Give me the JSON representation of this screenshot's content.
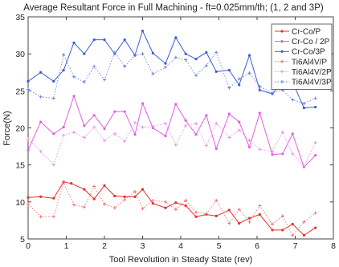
{
  "chart_data": {
    "type": "line",
    "title": "Average Resultant Force in Full Machining - ft=0.025mm/th; (1, 2 and 3P)",
    "xlabel": "Tool Revolution in Steady State (rev)",
    "ylabel": "Force(N)",
    "xlim": [
      0,
      8
    ],
    "ylim": [
      5,
      35
    ],
    "xticks": [
      "0",
      "1",
      "2",
      "3",
      "4",
      "5",
      "6",
      "7",
      "8"
    ],
    "yticks": [
      "5",
      "10",
      "15",
      "20",
      "25",
      "30",
      "35"
    ],
    "grid": false,
    "legend_position": "top-right",
    "series": [
      {
        "name": "Cr-Co/P",
        "color": "#e8302a",
        "style": "solid",
        "marker": "point",
        "x": [
          0,
          0.33,
          0.67,
          0.93,
          1.13,
          1.47,
          1.73,
          2.0,
          2.27,
          2.53,
          2.8,
          3.0,
          3.27,
          3.6,
          3.87,
          4.13,
          4.4,
          4.67,
          4.93,
          5.27,
          5.53,
          5.8,
          6.07,
          6.4,
          6.67,
          6.93,
          7.23,
          7.53
        ],
        "values": [
          10.6,
          10.7,
          10.5,
          12.7,
          12.5,
          11.7,
          10.4,
          12.2,
          10.8,
          10.7,
          10.7,
          11.7,
          9.8,
          9.2,
          9.9,
          9.5,
          8.0,
          8.3,
          8.1,
          8.9,
          7.1,
          7.8,
          8.3,
          6.2,
          6.2,
          7.0,
          5.5,
          6.5
        ]
      },
      {
        "name": "Cr-Co / 2P",
        "color": "#e060e0",
        "style": "solid",
        "marker": "point",
        "x": [
          0,
          0.33,
          0.67,
          0.93,
          1.2,
          1.47,
          1.73,
          2.0,
          2.27,
          2.53,
          2.8,
          3.0,
          3.27,
          3.6,
          3.87,
          4.13,
          4.4,
          4.67,
          4.93,
          5.27,
          5.53,
          5.8,
          6.07,
          6.4,
          6.67,
          6.93,
          7.23,
          7.53
        ],
        "values": [
          17.0,
          20.8,
          19.2,
          20.1,
          24.3,
          20.3,
          21.7,
          19.9,
          22.2,
          22.2,
          19.1,
          23.3,
          20.0,
          18.9,
          23.2,
          21.0,
          19.1,
          21.7,
          17.2,
          21.9,
          20.8,
          17.4,
          22.0,
          16.4,
          16.5,
          19.2,
          14.7,
          16.3
        ]
      },
      {
        "name": "Cr-Co/3P",
        "color": "#3a5cd8",
        "style": "solid",
        "marker": "point",
        "x": [
          0,
          0.33,
          0.67,
          0.93,
          1.2,
          1.47,
          1.73,
          2.0,
          2.27,
          2.53,
          2.8,
          3.0,
          3.27,
          3.6,
          3.87,
          4.13,
          4.4,
          4.67,
          4.93,
          5.27,
          5.53,
          5.8,
          6.07,
          6.4,
          6.67,
          6.93,
          7.23,
          7.53
        ],
        "values": [
          26.3,
          27.5,
          26.3,
          27.8,
          31.5,
          30.0,
          31.9,
          31.9,
          30.0,
          31.9,
          29.8,
          33.1,
          30.1,
          28.7,
          32.2,
          30.0,
          29.3,
          30.2,
          27.6,
          27.8,
          25.8,
          29.8,
          25.1,
          24.6,
          26.3,
          26.2,
          22.7,
          22.8
        ]
      },
      {
        "name": "Ti6Al4V/P",
        "color": "#f07070",
        "style": "dotted",
        "marker": "plus",
        "x": [
          0,
          0.33,
          0.67,
          0.93,
          1.2,
          1.47,
          1.73,
          2.0,
          2.27,
          2.53,
          2.8,
          3.0,
          3.27,
          3.6,
          3.87,
          4.13,
          4.4,
          4.67,
          4.93,
          5.27,
          5.53,
          5.8,
          6.07,
          6.4,
          6.67,
          6.93,
          7.23,
          7.53
        ],
        "values": [
          9.7,
          8.0,
          8.0,
          12.6,
          9.6,
          9.3,
          12.1,
          9.7,
          9.2,
          10.3,
          11.4,
          9.1,
          10.2,
          10.0,
          9.0,
          10.2,
          8.6,
          8.4,
          10.2,
          7.1,
          9.0,
          7.3,
          9.5,
          7.0,
          8.1,
          5.5,
          7.3,
          8.5
        ]
      },
      {
        "name": "Ti6Al4V/2P",
        "color": "#e890e8",
        "style": "dotted",
        "marker": "plus",
        "x": [
          0,
          0.33,
          0.67,
          0.93,
          1.2,
          1.47,
          1.73,
          2.0,
          2.27,
          2.53,
          2.8,
          3.0,
          3.27,
          3.6,
          3.87,
          4.13,
          4.4,
          4.67,
          4.93,
          5.27,
          5.53,
          5.8,
          6.07,
          6.4,
          6.67,
          6.93,
          7.23,
          7.53
        ],
        "values": [
          18.5,
          16.8,
          15.0,
          19.0,
          19.4,
          18.7,
          20.1,
          18.3,
          19.2,
          18.2,
          20.7,
          20.1,
          20.2,
          20.6,
          17.7,
          20.3,
          20.6,
          17.6,
          20.6,
          18.7,
          19.7,
          18.3,
          17.1,
          16.8,
          19.4,
          16.5,
          14.8,
          18.0
        ]
      },
      {
        "name": "Ti6Al4V/3P",
        "color": "#6a80e0",
        "style": "dotted",
        "marker": "plus",
        "x": [
          0,
          0.33,
          0.67,
          0.93,
          1.2,
          1.47,
          1.73,
          2.0,
          2.27,
          2.53,
          2.8,
          3.0,
          3.27,
          3.6,
          3.87,
          4.13,
          4.4,
          4.67,
          4.93,
          5.27,
          5.53,
          5.8,
          6.07,
          6.4,
          6.67,
          6.93,
          7.23,
          7.53
        ],
        "values": [
          25.2,
          24.2,
          24.0,
          29.9,
          26.9,
          26.2,
          28.3,
          26.5,
          30.2,
          28.3,
          29.8,
          30.0,
          27.3,
          28.2,
          29.5,
          29.2,
          27.1,
          28.4,
          30.2,
          25.4,
          26.6,
          27.4,
          25.6,
          24.7,
          25.1,
          23.8,
          23.3,
          24.0
        ]
      }
    ]
  }
}
